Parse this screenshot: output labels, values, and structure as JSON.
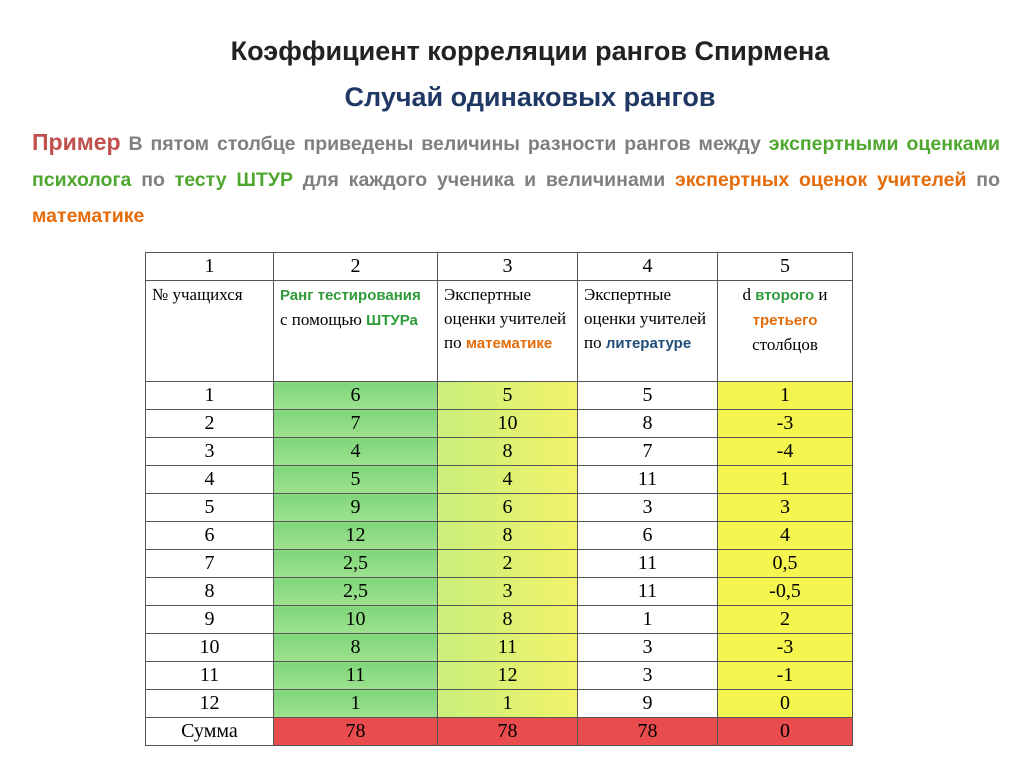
{
  "title": "Коэффициент корреляции рангов Спирмена",
  "subtitle": "Случай одинаковых рангов",
  "paragraph": [
    {
      "text": "Пример",
      "color": "#c0504d"
    },
    {
      "text": "  В пятом столбце приведены величины разности рангов между ",
      "color": "#7f7f7f"
    },
    {
      "text": "экспертными оценками психолога",
      "color": "#4ea72e"
    },
    {
      "text": " по ",
      "color": "#7f7f7f"
    },
    {
      "text": "тесту ШТУР",
      "color": "#4ea72e"
    },
    {
      "text": " для каждого ученика и величинами ",
      "color": "#7f7f7f"
    },
    {
      "text": "экспертных оценок учителей",
      "color": "#e46c0a"
    },
    {
      "text": " по ",
      "color": "#7f7f7f"
    },
    {
      "text": "математике",
      "color": "#e46c0a"
    }
  ],
  "table": {
    "column_numbers": [
      "1",
      "2",
      "3",
      "4",
      "5"
    ],
    "header": [
      [
        {
          "text": "№ учащихся"
        }
      ],
      [
        {
          "text": "Ранг тестирования",
          "color": "#2e9a3a"
        },
        {
          "text": " с помощью "
        },
        {
          "text": "ШТУРа",
          "color": "#2e9a3a"
        }
      ],
      [
        {
          "text": "Экспертные оценки учителей по "
        },
        {
          "text": "математике",
          "color": "#e46c0a"
        }
      ],
      [
        {
          "text": "Экспертные оценки учителей по "
        },
        {
          "text": "литературе",
          "color": "#1f4e79"
        }
      ],
      [
        {
          "text": "d "
        },
        {
          "text": "второго",
          "color": "#2e9a3a"
        },
        {
          "text": " и "
        },
        {
          "text": "третьего",
          "color": "#e46c0a"
        },
        {
          "text": " столбцов"
        }
      ]
    ],
    "rows": [
      [
        "1",
        "6",
        "5",
        "5",
        "1"
      ],
      [
        "2",
        "7",
        "10",
        "8",
        "-3"
      ],
      [
        "3",
        "4",
        "8",
        "7",
        "-4"
      ],
      [
        "4",
        "5",
        "4",
        "11",
        "1"
      ],
      [
        "5",
        "9",
        "6",
        "3",
        "3"
      ],
      [
        "6",
        "12",
        "8",
        "6",
        "4"
      ],
      [
        "7",
        "2,5",
        "2",
        "11",
        "0,5"
      ],
      [
        "8",
        "2,5",
        "3",
        "11",
        "-0,5"
      ],
      [
        "9",
        "10",
        "8",
        "1",
        "2"
      ],
      [
        "10",
        "8",
        "11",
        "3",
        "-3"
      ],
      [
        "11",
        "11",
        "12",
        "3",
        "-1"
      ],
      [
        "12",
        "1",
        "1",
        "9",
        "0"
      ]
    ],
    "total": [
      "Сумма",
      "78",
      "78",
      "78",
      "0"
    ]
  }
}
